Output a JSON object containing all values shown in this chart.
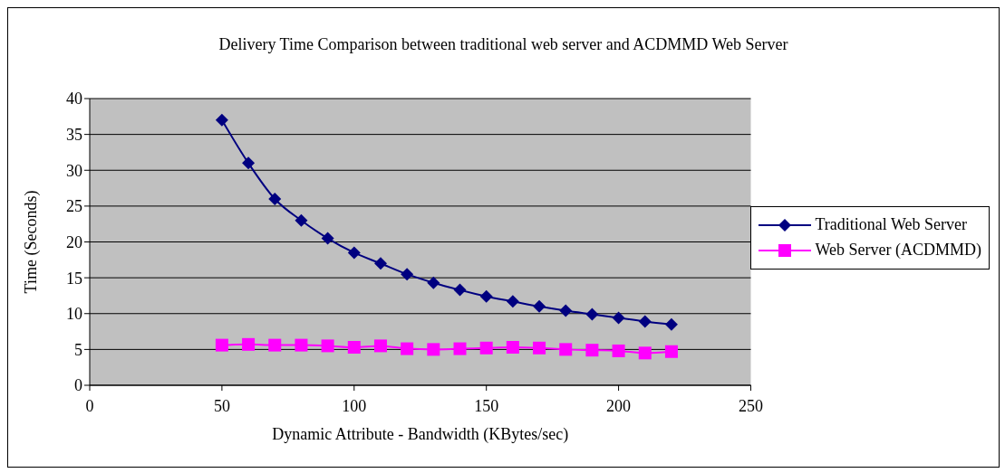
{
  "chart_data": {
    "type": "line",
    "title": "Delivery Time Comparison between traditional web server and ACDMMD Web Server",
    "xlabel": "Dynamic Attribute - Bandwidth (KBytes/sec)",
    "ylabel": "Time (Seconds)",
    "x": [
      50,
      60,
      70,
      80,
      90,
      100,
      110,
      120,
      130,
      140,
      150,
      160,
      170,
      180,
      190,
      200,
      210,
      220
    ],
    "series": [
      {
        "name": "Traditional Web Server",
        "color": "#000080",
        "marker": "diamond",
        "values": [
          37,
          31,
          26,
          23,
          20.5,
          18.5,
          17,
          15.5,
          14.3,
          13.3,
          12.4,
          11.7,
          11,
          10.4,
          9.9,
          9.4,
          8.9,
          8.5
        ]
      },
      {
        "name": "Web Server (ACDMMD)",
        "color": "#ff00ff",
        "marker": "square",
        "values": [
          5.6,
          5.7,
          5.6,
          5.6,
          5.5,
          5.3,
          5.5,
          5.1,
          5.0,
          5.1,
          5.2,
          5.3,
          5.2,
          5.0,
          4.9,
          4.8,
          4.5,
          4.7
        ]
      }
    ],
    "xlim": [
      0,
      250
    ],
    "xticks": [
      0,
      50,
      100,
      150,
      200,
      250
    ],
    "ylim": [
      0,
      40
    ],
    "yticks": [
      0,
      5,
      10,
      15,
      20,
      25,
      30,
      35,
      40
    ],
    "grid": "y",
    "legend": "right"
  }
}
